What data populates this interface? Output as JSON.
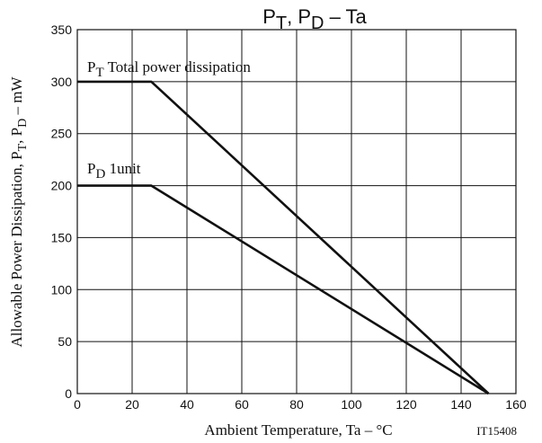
{
  "chart_data": {
    "type": "line",
    "title": {
      "p1": "P",
      "s1": "T",
      "mid": ", P",
      "s2": "D",
      "tail": "  –  Ta"
    },
    "xlabel": "Ambient Temperature, Ta  –  °C",
    "ylabel": {
      "pre": "Allowable Power Dissipation, P",
      "s1": "T",
      "mid": ", P",
      "s2": "D",
      "post": "  –  mW"
    },
    "xlim": [
      0,
      160
    ],
    "ylim": [
      0,
      350
    ],
    "xticks": [
      0,
      20,
      40,
      60,
      80,
      100,
      120,
      140,
      160
    ],
    "yticks": [
      0,
      50,
      100,
      150,
      200,
      250,
      300,
      350
    ],
    "grid": true,
    "series": [
      {
        "name": "PT Total power dissipation",
        "label": {
          "p": "P",
          "s": "T",
          "text": " Total power dissipation"
        },
        "x": [
          0,
          27,
          150
        ],
        "y": [
          300,
          300,
          0
        ]
      },
      {
        "name": "PD 1unit",
        "label": {
          "p": "P",
          "s": "D",
          "text": " 1unit"
        },
        "x": [
          0,
          27,
          150
        ],
        "y": [
          200,
          200,
          0
        ]
      }
    ],
    "annotation": "IT15408"
  }
}
